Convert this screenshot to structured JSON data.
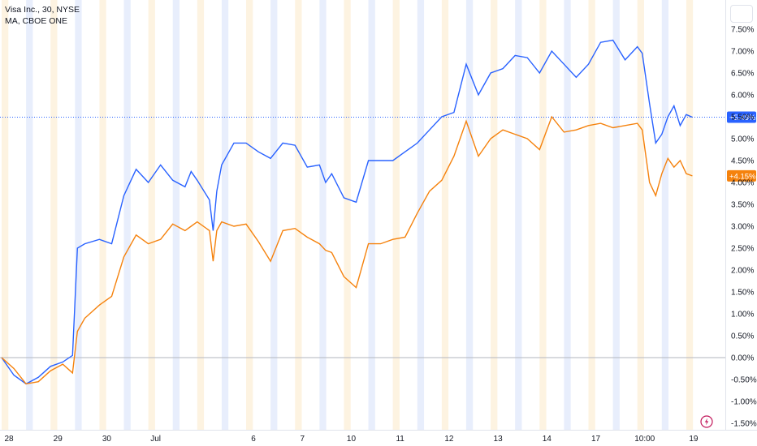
{
  "legend": {
    "line1": "Visa Inc., 30, NYSE",
    "line2": "MA, CBOE ONE"
  },
  "icons": {
    "top_right": "settings-box-icon",
    "bottom": "lightning-icon"
  },
  "chart_data": {
    "type": "line",
    "yaxis": {
      "unit": "%",
      "ticks": [
        "7.50%",
        "7.00%",
        "6.50%",
        "6.00%",
        "5.50%",
        "5.00%",
        "4.50%",
        "4.00%",
        "3.50%",
        "3.00%",
        "2.50%",
        "2.00%",
        "1.50%",
        "1.00%",
        "0.50%",
        "0.00%",
        "-0.50%",
        "-1.00%",
        "-1.50%"
      ],
      "range": [
        -1.6,
        7.9
      ]
    },
    "xaxis": {
      "ticks": [
        {
          "label": "28",
          "pos": 0.6
        },
        {
          "label": "29",
          "pos": 4.6
        },
        {
          "label": "30",
          "pos": 8.6
        },
        {
          "label": "Jul",
          "pos": 12.6
        },
        {
          "label": "6",
          "pos": 20.6
        },
        {
          "label": "7",
          "pos": 24.6
        },
        {
          "label": "10",
          "pos": 28.6
        },
        {
          "label": "11",
          "pos": 32.6
        },
        {
          "label": "12",
          "pos": 36.6
        },
        {
          "label": "13",
          "pos": 40.6
        },
        {
          "label": "14",
          "pos": 44.6
        },
        {
          "label": "17",
          "pos": 48.6
        },
        {
          "label": "10:00",
          "pos": 52.6
        },
        {
          "label": "19",
          "pos": 56.6
        }
      ],
      "range": [
        0,
        58
      ]
    },
    "series": [
      {
        "color": "#2962ff",
        "last_label": "+5.49%",
        "points": [
          [
            0,
            0
          ],
          [
            1,
            -0.4
          ],
          [
            2,
            -0.6
          ],
          [
            3,
            -0.45
          ],
          [
            4,
            -0.2
          ],
          [
            5,
            -0.1
          ],
          [
            5.8,
            0.05
          ],
          [
            6.2,
            2.5
          ],
          [
            6.8,
            2.6
          ],
          [
            8,
            2.7
          ],
          [
            9,
            2.6
          ],
          [
            10,
            3.7
          ],
          [
            11,
            4.3
          ],
          [
            12,
            4.0
          ],
          [
            13,
            4.4
          ],
          [
            14,
            4.05
          ],
          [
            15,
            3.9
          ],
          [
            15.5,
            4.25
          ],
          [
            16,
            4.05
          ],
          [
            17,
            3.6
          ],
          [
            17.3,
            2.9
          ],
          [
            17.6,
            3.8
          ],
          [
            18,
            4.4
          ],
          [
            19,
            4.9
          ],
          [
            20,
            4.9
          ],
          [
            21,
            4.7
          ],
          [
            22,
            4.55
          ],
          [
            23,
            4.9
          ],
          [
            24,
            4.85
          ],
          [
            25,
            4.35
          ],
          [
            26,
            4.4
          ],
          [
            26.5,
            4.0
          ],
          [
            27,
            4.2
          ],
          [
            28,
            3.65
          ],
          [
            29,
            3.55
          ],
          [
            30,
            4.5
          ],
          [
            31,
            4.5
          ],
          [
            32,
            4.5
          ],
          [
            33,
            4.7
          ],
          [
            34,
            4.9
          ],
          [
            35,
            5.2
          ],
          [
            36,
            5.5
          ],
          [
            37,
            5.6
          ],
          [
            38,
            6.7
          ],
          [
            39,
            6.0
          ],
          [
            40,
            6.5
          ],
          [
            41,
            6.6
          ],
          [
            42,
            6.9
          ],
          [
            43,
            6.85
          ],
          [
            44,
            6.5
          ],
          [
            45,
            7.0
          ],
          [
            46,
            6.7
          ],
          [
            47,
            6.4
          ],
          [
            48,
            6.7
          ],
          [
            49,
            7.2
          ],
          [
            50,
            7.25
          ],
          [
            51,
            6.8
          ],
          [
            52,
            7.1
          ],
          [
            52.4,
            6.95
          ],
          [
            53,
            5.8
          ],
          [
            53.5,
            4.9
          ],
          [
            54,
            5.1
          ],
          [
            54.5,
            5.5
          ],
          [
            55,
            5.75
          ],
          [
            55.5,
            5.3
          ],
          [
            56,
            5.55
          ],
          [
            56.5,
            5.49
          ]
        ]
      },
      {
        "color": "#f5820d",
        "last_label": "+4.15%",
        "points": [
          [
            0,
            0
          ],
          [
            1,
            -0.25
          ],
          [
            2,
            -0.6
          ],
          [
            3,
            -0.55
          ],
          [
            4,
            -0.3
          ],
          [
            5,
            -0.15
          ],
          [
            5.8,
            -0.35
          ],
          [
            6.2,
            0.6
          ],
          [
            6.8,
            0.9
          ],
          [
            8,
            1.2
          ],
          [
            9,
            1.4
          ],
          [
            10,
            2.3
          ],
          [
            11,
            2.8
          ],
          [
            12,
            2.6
          ],
          [
            13,
            2.7
          ],
          [
            14,
            3.05
          ],
          [
            15,
            2.9
          ],
          [
            15.5,
            3.0
          ],
          [
            16,
            3.1
          ],
          [
            17,
            2.9
          ],
          [
            17.3,
            2.2
          ],
          [
            17.6,
            2.9
          ],
          [
            18,
            3.1
          ],
          [
            19,
            3.0
          ],
          [
            20,
            3.05
          ],
          [
            21,
            2.65
          ],
          [
            22,
            2.2
          ],
          [
            23,
            2.9
          ],
          [
            24,
            2.95
          ],
          [
            25,
            2.75
          ],
          [
            26,
            2.6
          ],
          [
            26.5,
            2.45
          ],
          [
            27,
            2.4
          ],
          [
            28,
            1.85
          ],
          [
            29,
            1.6
          ],
          [
            30,
            2.6
          ],
          [
            31,
            2.6
          ],
          [
            32,
            2.7
          ],
          [
            33,
            2.75
          ],
          [
            34,
            3.3
          ],
          [
            35,
            3.8
          ],
          [
            36,
            4.05
          ],
          [
            37,
            4.6
          ],
          [
            38,
            5.4
          ],
          [
            39,
            4.6
          ],
          [
            40,
            5.0
          ],
          [
            41,
            5.2
          ],
          [
            42,
            5.1
          ],
          [
            43,
            5.0
          ],
          [
            44,
            4.75
          ],
          [
            45,
            5.5
          ],
          [
            46,
            5.15
          ],
          [
            47,
            5.2
          ],
          [
            48,
            5.3
          ],
          [
            49,
            5.35
          ],
          [
            50,
            5.25
          ],
          [
            51,
            5.3
          ],
          [
            52,
            5.35
          ],
          [
            52.4,
            5.2
          ],
          [
            53,
            4.0
          ],
          [
            53.5,
            3.7
          ],
          [
            54,
            4.2
          ],
          [
            54.5,
            4.55
          ],
          [
            55,
            4.35
          ],
          [
            55.5,
            4.5
          ],
          [
            56,
            4.2
          ],
          [
            56.5,
            4.15
          ]
        ]
      }
    ]
  }
}
